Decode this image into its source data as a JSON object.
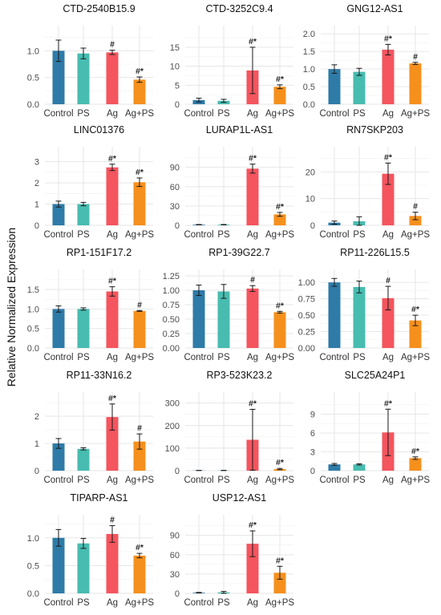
{
  "figure": {
    "ylabel": "Relative Normalized Expression",
    "categories": [
      "Control",
      "PS",
      "Ag",
      "Ag+PS"
    ],
    "colors": {
      "Control": "#2E7BA8",
      "PS": "#48BCB0",
      "Ag": "#F4555E",
      "Ag+PS": "#F5901D"
    }
  },
  "chart_data": [
    {
      "type": "bar",
      "title": "CTD-2540B15.9",
      "categories": [
        "Control",
        "PS",
        "Ag",
        "Ag+PS"
      ],
      "values": [
        1.0,
        0.95,
        0.97,
        0.46
      ],
      "errors": [
        0.2,
        0.1,
        0.04,
        0.05
      ],
      "significance": [
        "",
        "",
        "#",
        "#*"
      ],
      "ylim": [
        0,
        1.35
      ],
      "yticks": [
        "0.0",
        "0.5",
        "1.0"
      ]
    },
    {
      "type": "bar",
      "title": "CTD-3252C9.4",
      "categories": [
        "Control",
        "PS",
        "Ag",
        "Ag+PS"
      ],
      "values": [
        1.1,
        0.9,
        8.9,
        4.6
      ],
      "errors": [
        0.5,
        0.4,
        6.1,
        0.5
      ],
      "significance": [
        "",
        "",
        "#*",
        "#*"
      ],
      "ylim": [
        0,
        19
      ],
      "yticks": [
        "0",
        "5",
        "10",
        "15"
      ]
    },
    {
      "type": "bar",
      "title": "GNG12-AS1",
      "categories": [
        "Control",
        "PS",
        "Ag",
        "Ag+PS"
      ],
      "values": [
        1.0,
        0.92,
        1.55,
        1.16
      ],
      "errors": [
        0.12,
        0.1,
        0.15,
        0.03
      ],
      "significance": [
        "",
        "",
        "#*",
        "#"
      ],
      "ylim": [
        0,
        2.05
      ],
      "yticks": [
        "0.0",
        "0.5",
        "1.0",
        "1.5",
        "2.0"
      ]
    },
    {
      "type": "bar",
      "title": "LINC01376",
      "categories": [
        "Control",
        "PS",
        "Ag",
        "Ag+PS"
      ],
      "values": [
        1.0,
        1.0,
        2.73,
        2.03
      ],
      "errors": [
        0.14,
        0.08,
        0.15,
        0.2
      ],
      "significance": [
        "",
        "",
        "#*",
        "#*"
      ],
      "ylim": [
        0,
        3.4
      ],
      "yticks": [
        "0",
        "1",
        "2",
        "3"
      ]
    },
    {
      "type": "bar",
      "title": "LURAP1L-AS1",
      "categories": [
        "Control",
        "PS",
        "Ag",
        "Ag+PS"
      ],
      "values": [
        1.0,
        1.0,
        88.0,
        17.0
      ],
      "errors": [
        0.3,
        0.3,
        7.0,
        3.0
      ],
      "significance": [
        "",
        "",
        "#*",
        "#*"
      ],
      "ylim": [
        0,
        112
      ],
      "yticks": [
        "0",
        "30",
        "60",
        "90"
      ]
    },
    {
      "type": "bar",
      "title": "RN7SKP203",
      "categories": [
        "Control",
        "PS",
        "Ag",
        "Ag+PS"
      ],
      "values": [
        1.0,
        1.5,
        19.3,
        3.5
      ],
      "errors": [
        0.6,
        1.7,
        4.0,
        1.4
      ],
      "significance": [
        "",
        "",
        "#*",
        "#"
      ],
      "ylim": [
        0,
        27
      ],
      "yticks": [
        "0",
        "10",
        "20"
      ]
    },
    {
      "type": "bar",
      "title": "RP1-151F17.2",
      "categories": [
        "Control",
        "PS",
        "Ag",
        "Ag+PS"
      ],
      "values": [
        1.0,
        1.0,
        1.45,
        0.95
      ],
      "errors": [
        0.08,
        0.03,
        0.12,
        0.01
      ],
      "significance": [
        "",
        "",
        "#*",
        "#"
      ],
      "ylim": [
        0,
        1.85
      ],
      "yticks": [
        "0.0",
        "0.5",
        "1.0",
        "1.5"
      ]
    },
    {
      "type": "bar",
      "title": "RP1-39G22.7",
      "categories": [
        "Control",
        "PS",
        "Ag",
        "Ag+PS"
      ],
      "values": [
        1.0,
        0.98,
        1.03,
        0.62
      ],
      "errors": [
        0.09,
        0.12,
        0.05,
        0.015
      ],
      "significance": [
        "",
        "",
        "#",
        "#*"
      ],
      "ylim": [
        0,
        1.25
      ],
      "yticks": [
        "0.00",
        "0.25",
        "0.50",
        "0.75",
        "1.00",
        "1.25"
      ]
    },
    {
      "type": "bar",
      "title": "RP11-226L15.5",
      "categories": [
        "Control",
        "PS",
        "Ag",
        "Ag+PS"
      ],
      "values": [
        1.0,
        0.93,
        0.76,
        0.42
      ],
      "errors": [
        0.06,
        0.09,
        0.18,
        0.08
      ],
      "significance": [
        "",
        "",
        "#",
        "#*"
      ],
      "ylim": [
        0,
        1.1
      ],
      "yticks": [
        "0.00",
        "0.25",
        "0.50",
        "0.75",
        "1.00"
      ]
    },
    {
      "type": "bar",
      "title": "RP11-33N16.2",
      "categories": [
        "Control",
        "PS",
        "Ag",
        "Ag+PS"
      ],
      "values": [
        1.0,
        0.8,
        1.97,
        1.07
      ],
      "errors": [
        0.18,
        0.04,
        0.48,
        0.28
      ],
      "significance": [
        "",
        "",
        "#*",
        "#"
      ],
      "ylim": [
        0,
        2.65
      ],
      "yticks": [
        "0",
        "1",
        "2"
      ]
    },
    {
      "type": "bar",
      "title": "RP3-523K23.2",
      "categories": [
        "Control",
        "PS",
        "Ag",
        "Ag+PS"
      ],
      "values": [
        1.0,
        1.0,
        137.0,
        7.0
      ],
      "errors": [
        0.3,
        0.5,
        135.0,
        3.0
      ],
      "significance": [
        "",
        "",
        "#*",
        "#*"
      ],
      "ylim": [
        0,
        320
      ],
      "yticks": [
        "0",
        "100",
        "200",
        "300"
      ]
    },
    {
      "type": "bar",
      "title": "SLC25A24P1",
      "categories": [
        "Control",
        "PS",
        "Ag",
        "Ag+PS"
      ],
      "values": [
        1.0,
        1.0,
        6.1,
        2.0
      ],
      "errors": [
        0.15,
        0.1,
        3.7,
        0.2
      ],
      "significance": [
        "",
        "",
        "#*",
        "#*"
      ],
      "ylim": [
        0,
        11.5
      ],
      "yticks": [
        "0",
        "3",
        "6",
        "9"
      ]
    },
    {
      "type": "bar",
      "title": "TIPARP-AS1",
      "categories": [
        "Control",
        "PS",
        "Ag",
        "Ag+PS"
      ],
      "values": [
        1.0,
        0.9,
        1.07,
        0.68
      ],
      "errors": [
        0.15,
        0.09,
        0.15,
        0.04
      ],
      "significance": [
        "",
        "",
        "#",
        "#*"
      ],
      "ylim": [
        0,
        1.3
      ],
      "yticks": [
        "0.0",
        "0.5",
        "1.0"
      ]
    },
    {
      "type": "bar",
      "title": "USP12-AS1",
      "categories": [
        "Control",
        "PS",
        "Ag",
        "Ag+PS"
      ],
      "values": [
        1.0,
        1.5,
        77.0,
        32.0
      ],
      "errors": [
        0.5,
        1.5,
        20.0,
        10.0
      ],
      "significance": [
        "",
        "",
        "#*",
        "#*"
      ],
      "ylim": [
        0,
        112
      ],
      "yticks": [
        "0",
        "30",
        "60",
        "90"
      ]
    }
  ]
}
